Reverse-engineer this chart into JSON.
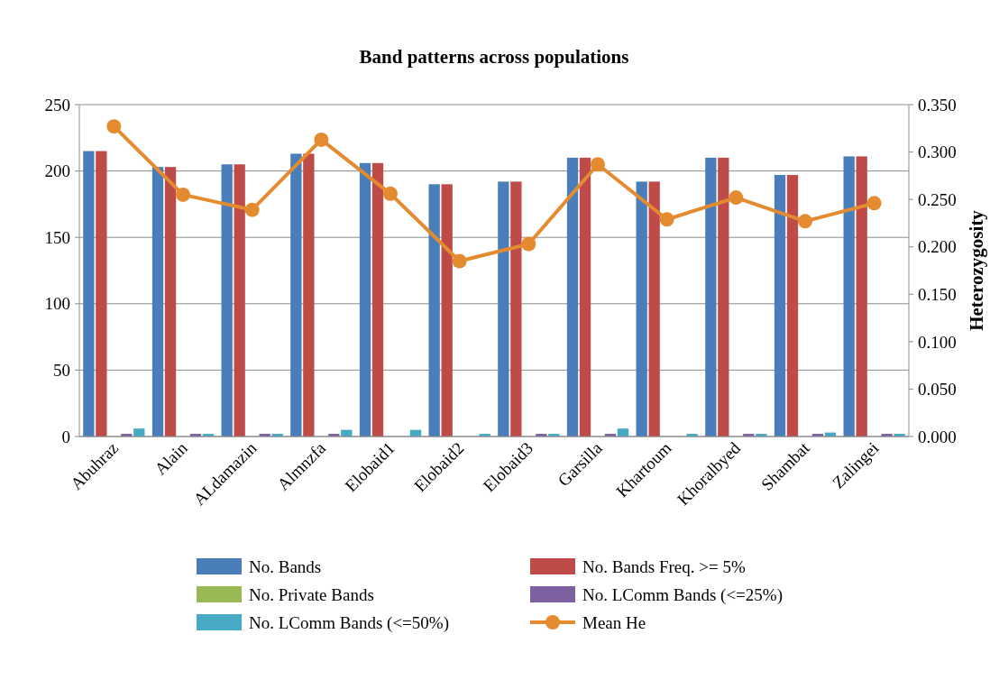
{
  "chart_data": {
    "type": "bar",
    "title": "Band patterns across populations",
    "y2label": "Heterozygosity",
    "categories": [
      "Abuhraz",
      "Alain",
      "ALdamazin",
      "Almnzfa",
      "Elobaid1",
      "Elobaid2",
      "Elobaid3",
      "Garsilla",
      "Khartoum",
      "Khoralbyed",
      "Shambat",
      "Zalingei"
    ],
    "series": [
      {
        "name": "No. Bands",
        "color": "#4a7ebb",
        "values": [
          215,
          203,
          205,
          213,
          206,
          190,
          192,
          210,
          192,
          210,
          197,
          211
        ]
      },
      {
        "name": "No. Bands Freq. >= 5%",
        "color": "#be4b48",
        "values": [
          215,
          203,
          205,
          213,
          206,
          190,
          192,
          210,
          192,
          210,
          197,
          211
        ]
      },
      {
        "name": "No. Private Bands",
        "color": "#98b954",
        "values": [
          0,
          0,
          0,
          0,
          0,
          0,
          0,
          0,
          0,
          0,
          0,
          0
        ]
      },
      {
        "name": "No. LComm Bands (<=25%)",
        "color": "#7d60a0",
        "values": [
          2,
          2,
          2,
          2,
          0,
          0,
          2,
          2,
          0,
          2,
          2,
          2
        ]
      },
      {
        "name": "No. LComm Bands (<=50%)",
        "color": "#46aac5",
        "values": [
          6,
          2,
          2,
          5,
          5,
          2,
          2,
          6,
          2,
          2,
          3,
          2
        ]
      },
      {
        "name": "Mean He",
        "type": "line",
        "axis": "y2",
        "color": "#e48b2f",
        "values": [
          0.327,
          0.255,
          0.239,
          0.313,
          0.256,
          0.185,
          0.203,
          0.287,
          0.229,
          0.252,
          0.227,
          0.246
        ]
      }
    ],
    "ylim": [
      0,
      250
    ],
    "yticks": [
      0,
      50,
      100,
      150,
      200,
      250
    ],
    "y2lim": [
      0,
      0.35
    ],
    "y2ticks": [
      {
        "value": 0,
        "label": "0.000"
      },
      {
        "value": 0.05,
        "label": "0.050"
      },
      {
        "value": 0.1,
        "label": "0.100"
      },
      {
        "value": 0.15,
        "label": "0.150"
      },
      {
        "value": 0.2,
        "label": "0.200"
      },
      {
        "value": 0.25,
        "label": "0.250"
      },
      {
        "value": 0.3,
        "label": "0.300"
      },
      {
        "value": 0.35,
        "label": "0.350"
      }
    ],
    "grid": "y",
    "legend": "bottom",
    "marker": "circle",
    "line_style": "solid"
  }
}
